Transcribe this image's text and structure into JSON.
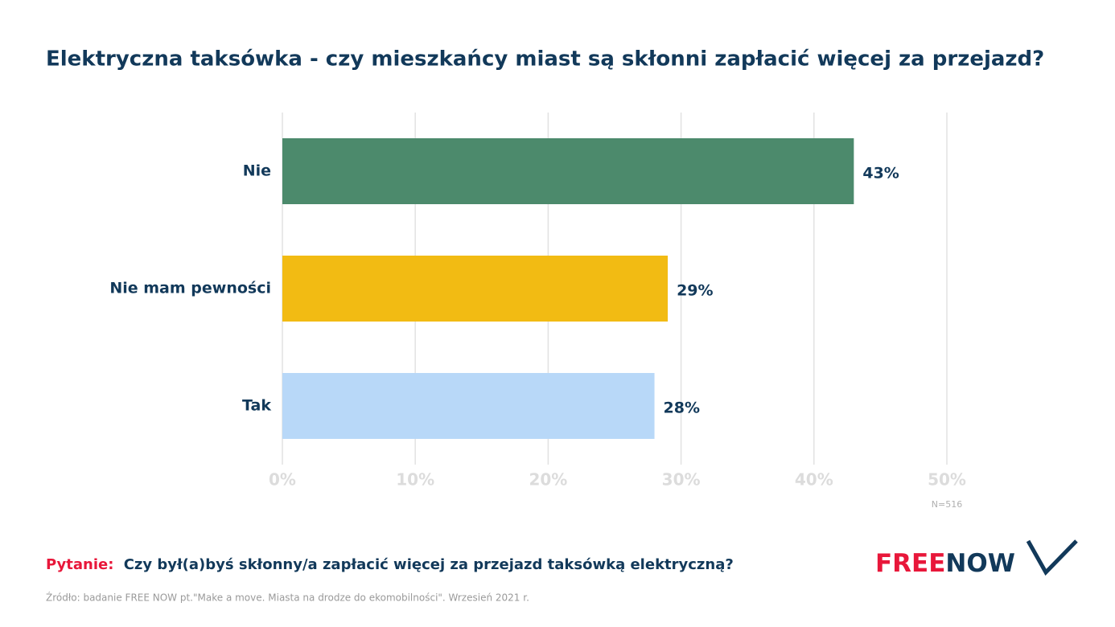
{
  "chart_data": {
    "type": "hbar",
    "title": "Elektryczna taksówka - czy mieszkańcy miast są skłonni zapłacić więcej za przejazd?",
    "categories": [
      "Nie",
      "Nie mam pewności",
      "Tak"
    ],
    "values": [
      43,
      29,
      28
    ],
    "value_labels": [
      "43%",
      "29%",
      "28%"
    ],
    "colors": [
      "#4c8a6c",
      "#f2bb13",
      "#b8d8f8"
    ],
    "xlim": [
      0,
      50
    ],
    "xticks": [
      {
        "value": 0,
        "label": "0%"
      },
      {
        "value": 10,
        "label": "10%"
      },
      {
        "value": 20,
        "label": "20%"
      },
      {
        "value": 30,
        "label": "30%"
      },
      {
        "value": 40,
        "label": "40%"
      },
      {
        "value": 50,
        "label": "50%"
      }
    ],
    "grid": true,
    "note": "N=516"
  },
  "footer": {
    "question_label": "Pytanie:",
    "question": "Czy był(a)byś skłonny/a zapłacić więcej za przejazd taksówką elektryczną?",
    "source": "Źródło: badanie FREE NOW pt.\"Make a move. Miasta na drodze do ekomobilności\". Wrzesień 2021 r.",
    "logo_free": "FREE",
    "logo_now": "NOW"
  }
}
